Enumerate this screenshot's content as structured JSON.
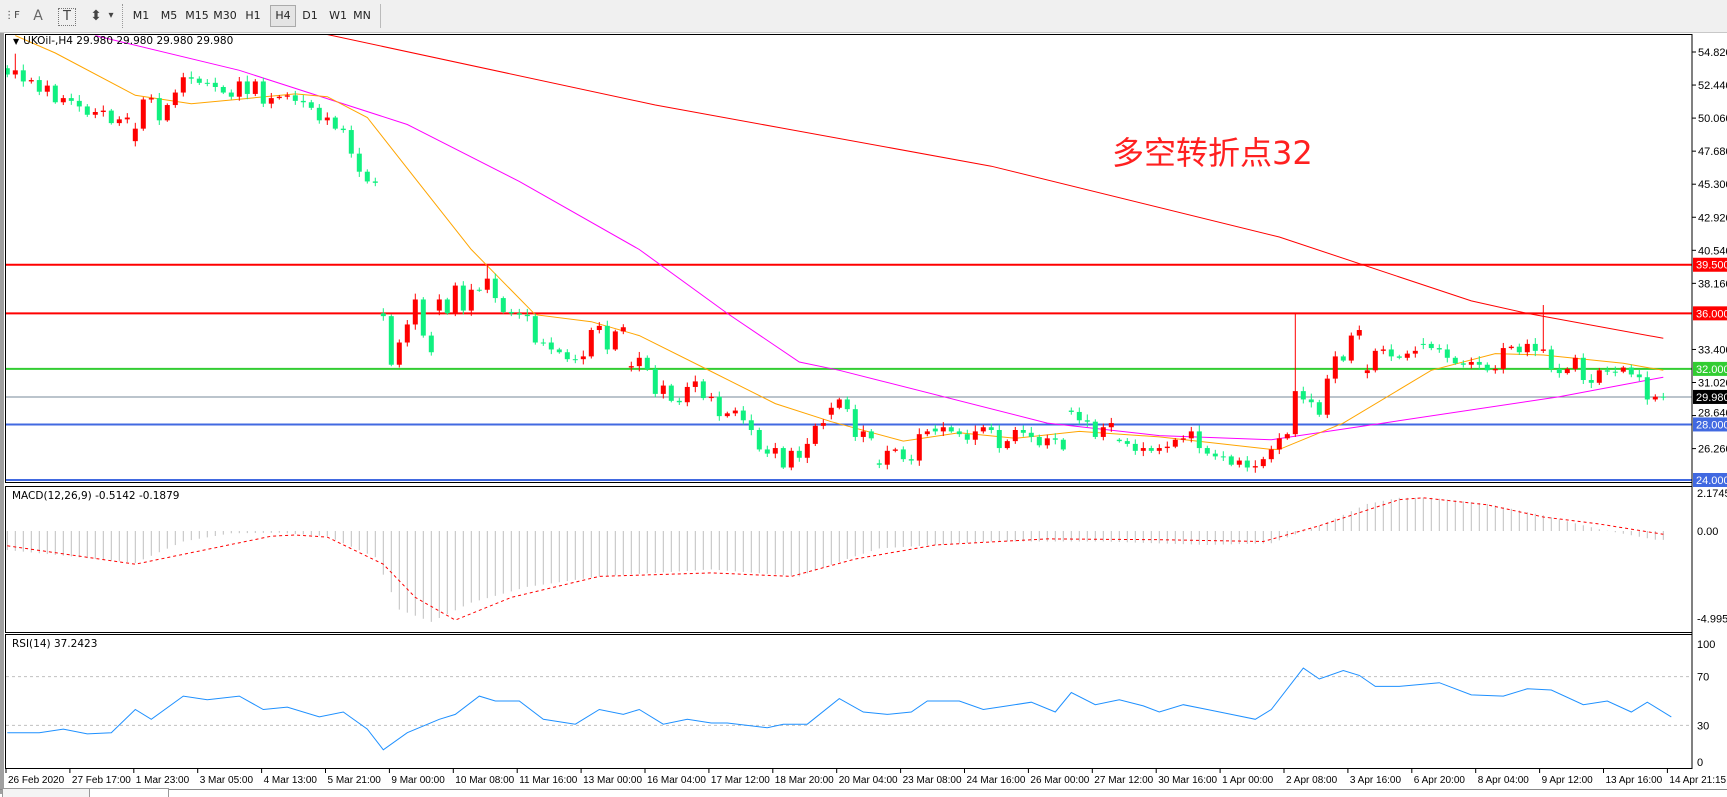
{
  "toolbar": {
    "tools": [
      {
        "name": "line-studies-icon",
        "glyph": "⋮F"
      },
      {
        "name": "text-icon",
        "glyph": "A"
      },
      {
        "name": "text-label-icon",
        "glyph": "T"
      },
      {
        "name": "arrows-icon",
        "glyph": "⬍"
      }
    ],
    "dropdown_glyph": "▾",
    "timeframes": [
      "M1",
      "M5",
      "M15",
      "M30",
      "H1",
      "H4",
      "D1",
      "W1",
      "MN"
    ],
    "active_timeframe": "H4"
  },
  "chart": {
    "symbol_label": "UKOil-,H4  29.980 29.980 29.980 29.980",
    "dropdown_glyph": "▼",
    "annotation": "多空转折点32",
    "price_axis": [
      "54.820",
      "52.440",
      "50.060",
      "47.680",
      "45.300",
      "42.920",
      "40.540",
      "38.160",
      "33.400",
      "31.020",
      "28.640",
      "26.260"
    ],
    "levels": [
      {
        "price": 39.5,
        "label": "39.500",
        "color": "#ff0000"
      },
      {
        "price": 36.0,
        "label": "36.000",
        "color": "#ff0000"
      },
      {
        "price": 32.0,
        "label": "32.000",
        "color": "#32cd32"
      },
      {
        "price": 28.0,
        "label": "28.000",
        "color": "#4169e1"
      },
      {
        "price": 24.0,
        "label": "24.000",
        "color": "#4169e1"
      }
    ],
    "current_price": {
      "price": 29.98,
      "label": "29.980",
      "color": "#778899"
    },
    "macd_label": "MACD(12,26,9) -0.5142 -0.1879",
    "macd_axis": [
      "2.1745",
      "0.00",
      "-4.9955"
    ],
    "rsi_label": "RSI(14) 37.2423",
    "rsi_axis": [
      "100",
      "70",
      "30",
      "0"
    ],
    "time_labels": [
      "26 Feb 2020",
      "27 Feb 17:00",
      "1 Mar 23:00",
      "3 Mar 05:00",
      "4 Mar 13:00",
      "5 Mar 21:00",
      "9 Mar 00:00",
      "10 Mar 08:00",
      "11 Mar 16:00",
      "13 Mar 00:00",
      "16 Mar 04:00",
      "17 Mar 12:00",
      "18 Mar 20:00",
      "20 Mar 04:00",
      "23 Mar 08:00",
      "24 Mar 16:00",
      "26 Mar 00:00",
      "27 Mar 12:00",
      "30 Mar 16:00",
      "1 Apr 00:00",
      "2 Apr 08:00",
      "3 Apr 16:00",
      "6 Apr 20:00",
      "8 Apr 04:00",
      "9 Apr 12:00",
      "13 Apr 16:00",
      "14 Apr 21:15"
    ]
  },
  "colors": {
    "bull": "#ff0000",
    "bear": "#10f080",
    "ma_fast": "#ffa500",
    "ma_mid": "#ff00ff",
    "ma_slow": "#ff0000",
    "macd_hist": "#c0c0c0",
    "macd_signal": "#ff0000",
    "rsi": "#1e90ff"
  },
  "chart_data": {
    "type": "candlestick",
    "symbol": "UKOil-",
    "timeframe": "H4",
    "closes": [
      53.2,
      53.5,
      52.7,
      52.8,
      51.96,
      52.4,
      51.2,
      51.5,
      51.3,
      50.9,
      50.3,
      50.5,
      50.6,
      49.7,
      49.97,
      50.1,
      49.3,
      51.4,
      51.5,
      49.9,
      51.0,
      51.9,
      53.0,
      52.9,
      52.6,
      52.6,
      52.3,
      51.9,
      51.6,
      52.7,
      51.8,
      52.7,
      51.1,
      51.5,
      51.6,
      51.7,
      51.3,
      51.2,
      50.8,
      49.9,
      50.1,
      49.3,
      49.2,
      47.5,
      46.2,
      45.5,
      45.4,
      35.8,
      32.3,
      33.9,
      35.2,
      37.0,
      34.4,
      33.2,
      37.0,
      36.0,
      38.0,
      36.2,
      37.7,
      37.7,
      38.5,
      37.1,
      36.1,
      36.0,
      35.9,
      35.8,
      33.9,
      33.9,
      33.4,
      33.2,
      32.7,
      32.7,
      32.9,
      34.8,
      35.1,
      33.4,
      34.7,
      35.0,
      32.2,
      32.8,
      32.0,
      30.2,
      30.8,
      29.7,
      29.6,
      30.7,
      31.1,
      29.9,
      30.0,
      28.6,
      28.8,
      29.0,
      28.3,
      27.6,
      26.2,
      25.9,
      26.3,
      24.9,
      26.1,
      25.6,
      26.6,
      27.9,
      28.1,
      29.2,
      29.8,
      29.1,
      27.1,
      27.5,
      27.0,
      25.1,
      26.1,
      26.2,
      25.5,
      25.4,
      27.3,
      27.5,
      27.5,
      27.8,
      27.5,
      27.3,
      26.9,
      27.5,
      27.8,
      27.6,
      26.3,
      26.8,
      27.6,
      27.4,
      27.1,
      26.5,
      27.0,
      26.9,
      26.2,
      28.9,
      28.3,
      28.2,
      27.1,
      27.8,
      28.1,
      26.8,
      26.6,
      26.1,
      26.3,
      26.1,
      26.3,
      26.4,
      26.9,
      27.0,
      27.5,
      26.3,
      25.9,
      25.7,
      25.7,
      25.1,
      25.4,
      24.9,
      25.0,
      25.5,
      26.2,
      27.0,
      27.3,
      30.4,
      29.8,
      29.6,
      28.7,
      31.3,
      32.9,
      32.6,
      34.4,
      34.8,
      31.9,
      33.3,
      33.4,
      32.9,
      32.8,
      33.1,
      33.3,
      33.8,
      33.5,
      33.4,
      32.8,
      32.4,
      32.3,
      32.5,
      32.3,
      31.9,
      32.0,
      33.5,
      33.6,
      33.2,
      33.8,
      33.3,
      33.4,
      32.0,
      31.7,
      32.0,
      32.8,
      31.2,
      31.0,
      31.9,
      31.8,
      31.8,
      32.1,
      31.6,
      31.4,
      29.8,
      30.0,
      29.98
    ],
    "gap_opens": {
      "1": 53.65,
      "17": 48.4,
      "48": 36.0,
      "55": 36.2,
      "79": 32.1,
      "104": 28.7,
      "110": 25.2,
      "117": 27.7,
      "134": 29.0,
      "140": 26.9,
      "171": 31.7,
      "178": 33.8
    },
    "wick_highs": {
      "2": 54.7,
      "61": 39.5,
      "162": 36.0,
      "193": 36.6
    },
    "ma_fast": [
      [
        2,
        56.0
      ],
      [
        7,
        54.75
      ],
      [
        17,
        51.7
      ],
      [
        24,
        51.1
      ],
      [
        37,
        51.8
      ],
      [
        41,
        51.6
      ],
      [
        46,
        50.1
      ],
      [
        52,
        45.7
      ],
      [
        59,
        40.6
      ],
      [
        67,
        35.9
      ],
      [
        74,
        35.4
      ],
      [
        80,
        34.4
      ],
      [
        88,
        32.1
      ],
      [
        97,
        29.5
      ],
      [
        104,
        28.2
      ],
      [
        113,
        26.8
      ],
      [
        120,
        27.4
      ],
      [
        127,
        27.0
      ],
      [
        135,
        27.5
      ],
      [
        145,
        27.1
      ],
      [
        159,
        26.2
      ],
      [
        160,
        26.2
      ],
      [
        168,
        28.1
      ],
      [
        179,
        31.9
      ],
      [
        187,
        33.1
      ],
      [
        193,
        33.0
      ],
      [
        203,
        32.4
      ],
      [
        208,
        31.9
      ]
    ],
    "ma_mid": [
      [
        12,
        56.0
      ],
      [
        30,
        53.5
      ],
      [
        51,
        49.6
      ],
      [
        65,
        45.5
      ],
      [
        80,
        40.6
      ],
      [
        91,
        36.0
      ],
      [
        100,
        32.5
      ],
      [
        105,
        31.9
      ],
      [
        131,
        28.1
      ],
      [
        145,
        27.2
      ],
      [
        159,
        26.9
      ],
      [
        173,
        28.1
      ],
      [
        195,
        30.0
      ],
      [
        208,
        31.4
      ]
    ],
    "ma_slow": [
      [
        40,
        56.2
      ],
      [
        82,
        51.0
      ],
      [
        124,
        46.6
      ],
      [
        160,
        41.5
      ],
      [
        184,
        36.9
      ],
      [
        191,
        36.0
      ],
      [
        208,
        34.2
      ]
    ],
    "macd": {
      "ylim": [
        -4.9955,
        2.1745
      ],
      "histogram": [
        [
          1,
          -1.09
        ],
        [
          17,
          -1.83
        ],
        [
          23,
          -0.6
        ],
        [
          29,
          -0.13
        ],
        [
          35,
          -0.1
        ],
        [
          41,
          -0.3
        ],
        [
          47,
          -1.5
        ],
        [
          50,
          -4.5
        ],
        [
          54,
          -5.2
        ],
        [
          59,
          -4.1
        ],
        [
          66,
          -3.2
        ],
        [
          75,
          -2.6
        ],
        [
          89,
          -2.2
        ],
        [
          100,
          -2.6
        ],
        [
          106,
          -1.6
        ],
        [
          110,
          -1.0
        ],
        [
          124,
          -0.6
        ],
        [
          138,
          -0.6
        ],
        [
          151,
          -0.8
        ],
        [
          159,
          -0.7
        ],
        [
          162,
          -0.2
        ],
        [
          165,
          0.3
        ],
        [
          171,
          1.55
        ],
        [
          175,
          1.9
        ],
        [
          179,
          1.9
        ],
        [
          186,
          1.55
        ],
        [
          193,
          0.9
        ],
        [
          200,
          0.1
        ],
        [
          207,
          -0.5
        ],
        [
          208,
          -0.51
        ]
      ],
      "signal": [
        [
          1,
          -0.85
        ],
        [
          17,
          -1.9
        ],
        [
          34,
          -0.3
        ],
        [
          37,
          -0.23
        ],
        [
          41,
          -0.35
        ],
        [
          48,
          -1.9
        ],
        [
          52,
          -3.8
        ],
        [
          57,
          -5.1
        ],
        [
          64,
          -3.8
        ],
        [
          75,
          -2.6
        ],
        [
          89,
          -2.4
        ],
        [
          99,
          -2.6
        ],
        [
          107,
          -1.6
        ],
        [
          117,
          -0.8
        ],
        [
          131,
          -0.45
        ],
        [
          145,
          -0.5
        ],
        [
          158,
          -0.6
        ],
        [
          165,
          0.3
        ],
        [
          175,
          1.8
        ],
        [
          178,
          1.9
        ],
        [
          186,
          1.5
        ],
        [
          193,
          0.8
        ],
        [
          200,
          0.4
        ],
        [
          208,
          -0.19
        ]
      ]
    },
    "rsi": {
      "ylim": [
        0,
        100
      ],
      "levels": [
        70,
        30
      ],
      "values": [
        [
          1,
          24
        ],
        [
          5,
          24
        ],
        [
          8,
          27
        ],
        [
          11,
          23
        ],
        [
          14,
          24
        ],
        [
          17,
          43
        ],
        [
          19,
          35
        ],
        [
          23,
          54
        ],
        [
          26,
          51
        ],
        [
          30,
          54
        ],
        [
          33,
          43
        ],
        [
          36,
          45
        ],
        [
          40,
          37
        ],
        [
          43,
          41
        ],
        [
          46,
          27
        ],
        [
          48,
          10
        ],
        [
          51,
          24
        ],
        [
          55,
          35
        ],
        [
          57,
          39
        ],
        [
          60,
          54
        ],
        [
          62,
          50
        ],
        [
          65,
          50
        ],
        [
          68,
          35
        ],
        [
          72,
          31
        ],
        [
          75,
          43
        ],
        [
          78,
          39
        ],
        [
          80,
          43
        ],
        [
          83,
          31
        ],
        [
          86,
          35
        ],
        [
          89,
          32
        ],
        [
          91,
          32
        ],
        [
          96,
          28
        ],
        [
          98,
          31
        ],
        [
          101,
          31
        ],
        [
          105,
          52
        ],
        [
          108,
          41
        ],
        [
          111,
          39
        ],
        [
          114,
          41
        ],
        [
          116,
          50
        ],
        [
          120,
          50
        ],
        [
          123,
          43
        ],
        [
          126,
          46
        ],
        [
          129,
          49
        ],
        [
          132,
          41
        ],
        [
          134,
          57
        ],
        [
          137,
          47
        ],
        [
          140,
          51
        ],
        [
          143,
          46
        ],
        [
          145,
          41
        ],
        [
          148,
          47
        ],
        [
          151,
          43
        ],
        [
          154,
          39
        ],
        [
          157,
          35
        ],
        [
          159,
          43
        ],
        [
          163,
          77
        ],
        [
          165,
          68
        ],
        [
          168,
          75
        ],
        [
          170,
          71
        ],
        [
          172,
          62
        ],
        [
          175,
          62
        ],
        [
          180,
          65
        ],
        [
          184,
          55
        ],
        [
          188,
          54
        ],
        [
          191,
          60
        ],
        [
          194,
          59
        ],
        [
          198,
          47
        ],
        [
          201,
          50
        ],
        [
          204,
          41
        ],
        [
          206,
          49
        ],
        [
          209,
          37
        ],
        [
          209,
          37
        ]
      ]
    }
  }
}
